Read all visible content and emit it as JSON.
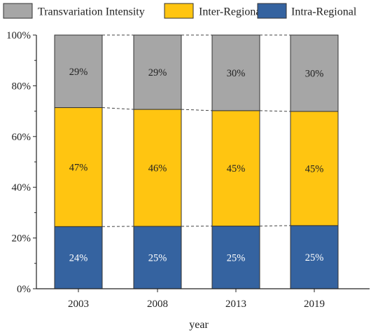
{
  "chart_data": {
    "type": "bar",
    "stacked": true,
    "normalized": true,
    "categories": [
      "2003",
      "2008",
      "2013",
      "2019"
    ],
    "series": [
      {
        "name": "Intra-Regional",
        "color": "#3563a0",
        "values": [
          0.245,
          0.246,
          0.247,
          0.249
        ],
        "labels": [
          "24%",
          "25%",
          "25%",
          "25%"
        ],
        "label_color": "#ffffff"
      },
      {
        "name": "Inter-Regional",
        "color": "#ffc511",
        "values": [
          0.469,
          0.461,
          0.455,
          0.45
        ],
        "labels": [
          "47%",
          "46%",
          "45%",
          "45%"
        ],
        "label_color": "#222222"
      },
      {
        "name": "Transvariation Intensity",
        "color": "#a6a6a6",
        "values": [
          0.286,
          0.293,
          0.298,
          0.301
        ],
        "labels": [
          "29%",
          "29%",
          "30%",
          "30%"
        ],
        "label_color": "#222222"
      }
    ],
    "legend_order": [
      "Transvariation Intensity",
      "Inter-Regional",
      "Intra-Regional"
    ],
    "legend_position": "top",
    "xlabel": "year",
    "ylabel": "",
    "ylim": [
      0,
      1
    ],
    "yticks": [
      {
        "value": 0,
        "label": "0%"
      },
      {
        "value": 0.2,
        "label": "20%"
      },
      {
        "value": 0.4,
        "label": "40%"
      },
      {
        "value": 0.6,
        "label": "60%"
      },
      {
        "value": 0.8,
        "label": "80%"
      },
      {
        "value": 1.0,
        "label": "100%"
      }
    ],
    "connector_lines": "dashed",
    "grid": false
  }
}
